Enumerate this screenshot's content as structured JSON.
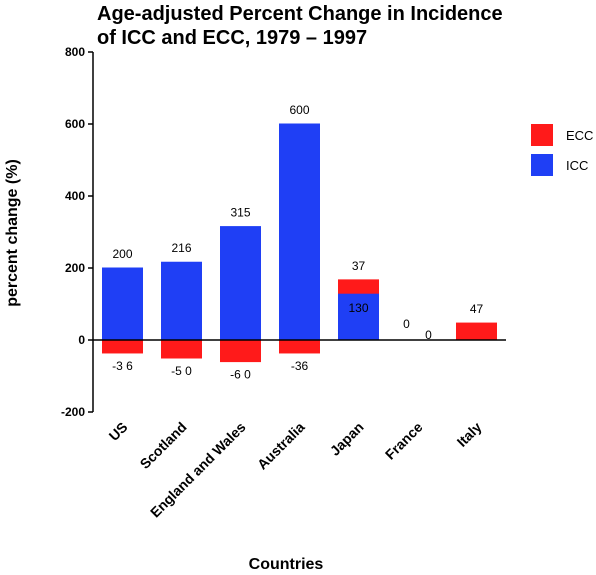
{
  "chart_data": {
    "type": "bar",
    "title_lines": [
      "Age-adjusted Percent Change in Incidence",
      "of ICC and ECC, 1979 – 1997"
    ],
    "xlabel": "Countries",
    "ylabel": "percent change (%)",
    "ylim": [
      -200,
      800
    ],
    "yticks": [
      -200,
      0,
      200,
      400,
      600,
      800
    ],
    "ytick_labels": [
      "-200",
      "0",
      "200",
      "400",
      "600",
      "800"
    ],
    "categories": [
      "US",
      "Scotland",
      "England and Wales",
      "Australia",
      "Japan",
      "France",
      "Italy"
    ],
    "series": [
      {
        "name": "ICC",
        "color": "#1f3ff5",
        "values": [
          200,
          216,
          315,
          600,
          130,
          0,
          0
        ]
      },
      {
        "name": "ECC",
        "color": "#ff1a1a",
        "values": [
          -36,
          -50,
          -60,
          -36,
          37,
          0,
          47
        ]
      }
    ],
    "data_labels": {
      "ICC": [
        "200",
        "216",
        "315",
        "600",
        "130",
        "0",
        ""
      ],
      "ECC": [
        "-3 6",
        "-5 0",
        "-6 0",
        "-36",
        "37",
        "0",
        "47"
      ]
    },
    "legend": {
      "position": "right",
      "entries": [
        "ECC",
        "ICC"
      ]
    },
    "grid": false
  }
}
